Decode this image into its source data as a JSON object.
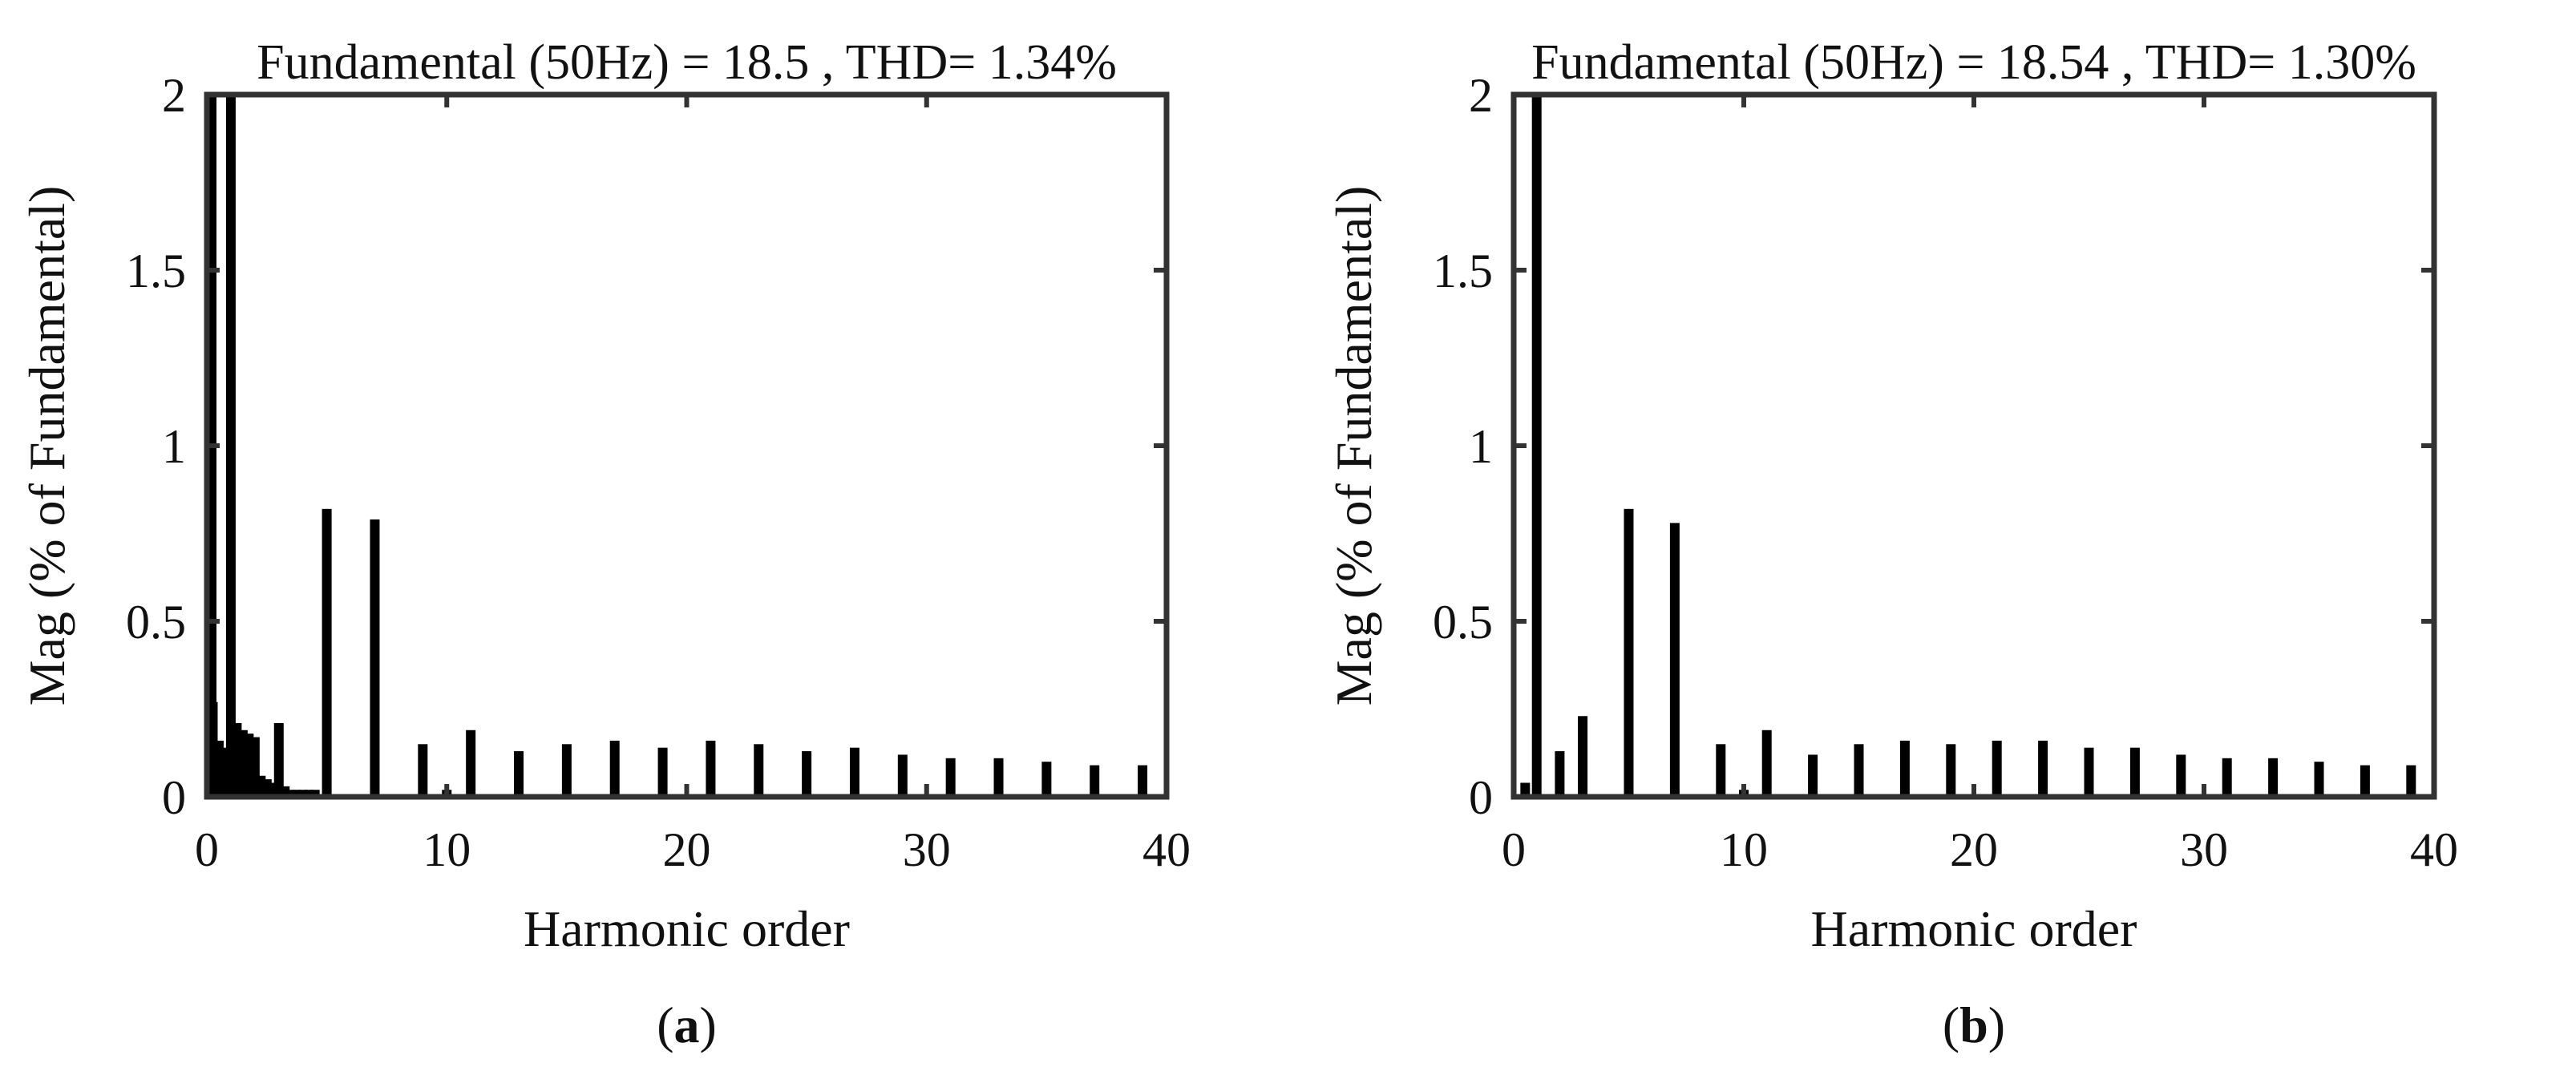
{
  "chart_data": [
    {
      "type": "bar",
      "panel_label": "a",
      "title": "Fundamental (50Hz) = 18.5 , THD= 1.34%",
      "xlabel": "Harmonic order",
      "ylabel": "Mag (% of Fundamental)",
      "xlim": [
        0,
        40
      ],
      "ylim": [
        0,
        2
      ],
      "xticks": [
        "0",
        "10",
        "20",
        "30",
        "40"
      ],
      "yticks": [
        "0",
        "0.5",
        "1",
        "1.5",
        "2"
      ],
      "grid": false,
      "bar_color": "#000000",
      "x": [
        0,
        0.25,
        0.5,
        0.75,
        1,
        1.25,
        1.5,
        1.75,
        2,
        2.25,
        2.5,
        2.75,
        3,
        3.25,
        3.5,
        3.75,
        4,
        4.25,
        4.5,
        5,
        7,
        9,
        10,
        11,
        13,
        15,
        17,
        19,
        21,
        23,
        25,
        27,
        29,
        31,
        33,
        35,
        37,
        39
      ],
      "values": [
        2.0,
        0.27,
        0.16,
        0.14,
        2.0,
        0.21,
        0.19,
        0.18,
        0.17,
        0.06,
        0.05,
        0.04,
        0.21,
        0.03,
        0.02,
        0.02,
        0.02,
        0.02,
        0.02,
        0.82,
        0.79,
        0.15,
        0.02,
        0.19,
        0.13,
        0.15,
        0.16,
        0.14,
        0.16,
        0.15,
        0.13,
        0.14,
        0.12,
        0.11,
        0.11,
        0.1,
        0.09,
        0.09
      ]
    },
    {
      "type": "bar",
      "panel_label": "b",
      "title": "Fundamental (50Hz) = 18.54 , THD= 1.30%",
      "xlabel": "Harmonic order",
      "ylabel": "Mag (% of Fundamental)",
      "xlim": [
        0,
        40
      ],
      "ylim": [
        0,
        2
      ],
      "xticks": [
        "0",
        "10",
        "20",
        "30",
        "40"
      ],
      "yticks": [
        "0",
        "0.5",
        "1",
        "1.5",
        "2"
      ],
      "grid": false,
      "bar_color": "#000000",
      "x": [
        0.5,
        1,
        2,
        3,
        5,
        7,
        9,
        10,
        11,
        13,
        15,
        17,
        19,
        21,
        23,
        25,
        27,
        29,
        31,
        33,
        35,
        37,
        39
      ],
      "values": [
        0.04,
        2.0,
        0.13,
        0.23,
        0.82,
        0.78,
        0.15,
        0.02,
        0.19,
        0.12,
        0.15,
        0.16,
        0.15,
        0.16,
        0.16,
        0.14,
        0.14,
        0.12,
        0.11,
        0.11,
        0.1,
        0.09,
        0.09
      ]
    }
  ]
}
